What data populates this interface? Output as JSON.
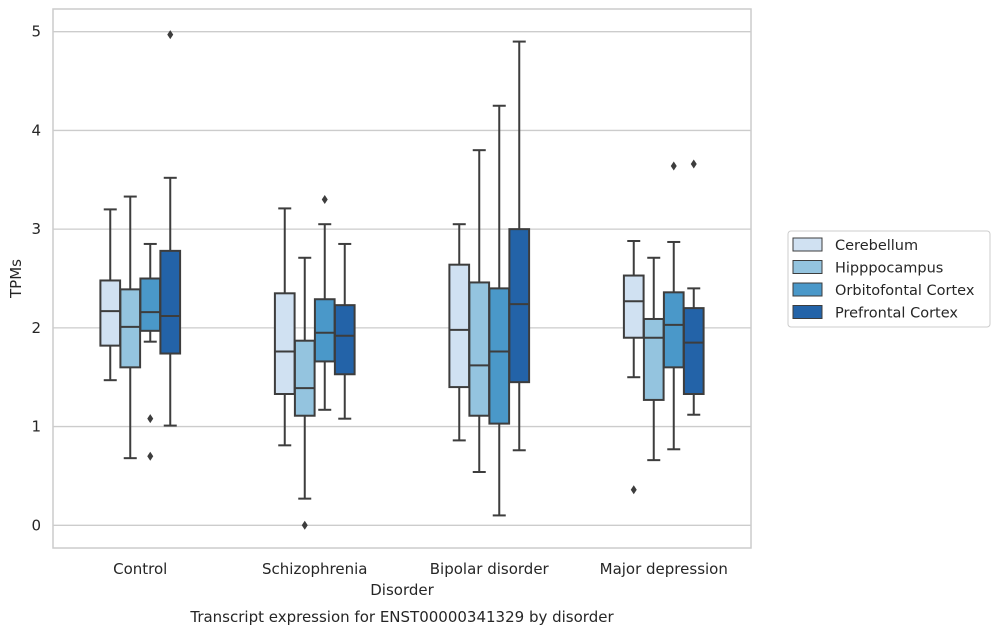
{
  "chart_data": {
    "type": "boxplot",
    "title": "Transcript expression for ENST00000341329 by disorder",
    "xlabel": "Disorder",
    "ylabel": "TPMs",
    "ylim": [
      -0.23,
      5.23
    ],
    "yticks": [
      0,
      1,
      2,
      3,
      4,
      5
    ],
    "grid": "horizontal",
    "legend_position": "right",
    "categories": [
      "Control",
      "Schizophrenia",
      "Bipolar disorder",
      "Major depression"
    ],
    "series": [
      {
        "name": "Cerebellum",
        "color": "#d0e1f2",
        "boxes": [
          {
            "whislo": 1.47,
            "q1": 1.82,
            "med": 2.17,
            "q3": 2.48,
            "whishi": 3.2,
            "fliers": []
          },
          {
            "whislo": 0.81,
            "q1": 1.33,
            "med": 1.76,
            "q3": 2.35,
            "whishi": 3.21,
            "fliers": []
          },
          {
            "whislo": 0.86,
            "q1": 1.4,
            "med": 1.98,
            "q3": 2.64,
            "whishi": 3.05,
            "fliers": []
          },
          {
            "whislo": 1.5,
            "q1": 1.9,
            "med": 2.27,
            "q3": 2.53,
            "whishi": 2.88,
            "fliers": [
              0.36
            ]
          }
        ]
      },
      {
        "name": "Hipppocampus",
        "color": "#94c4df",
        "boxes": [
          {
            "whislo": 0.68,
            "q1": 1.6,
            "med": 2.01,
            "q3": 2.39,
            "whishi": 3.33,
            "fliers": []
          },
          {
            "whislo": 0.27,
            "q1": 1.11,
            "med": 1.39,
            "q3": 1.87,
            "whishi": 2.71,
            "fliers": [
              0.0
            ]
          },
          {
            "whislo": 0.54,
            "q1": 1.11,
            "med": 1.62,
            "q3": 2.46,
            "whishi": 3.8,
            "fliers": []
          },
          {
            "whislo": 0.66,
            "q1": 1.27,
            "med": 1.9,
            "q3": 2.09,
            "whishi": 2.71,
            "fliers": []
          }
        ]
      },
      {
        "name": "Orbitofontal Cortex",
        "color": "#4a98c9",
        "boxes": [
          {
            "whislo": 1.86,
            "q1": 1.97,
            "med": 2.16,
            "q3": 2.5,
            "whishi": 2.85,
            "fliers": [
              1.08,
              0.7
            ]
          },
          {
            "whislo": 1.17,
            "q1": 1.66,
            "med": 1.95,
            "q3": 2.29,
            "whishi": 3.05,
            "fliers": [
              3.3
            ]
          },
          {
            "whislo": 0.1,
            "q1": 1.03,
            "med": 1.76,
            "q3": 2.4,
            "whishi": 4.25,
            "fliers": []
          },
          {
            "whislo": 0.77,
            "q1": 1.6,
            "med": 2.03,
            "q3": 2.36,
            "whishi": 2.87,
            "fliers": [
              3.64
            ]
          }
        ]
      },
      {
        "name": "Prefrontal Cortex",
        "color": "#2363a8",
        "boxes": [
          {
            "whislo": 1.01,
            "q1": 1.74,
            "med": 2.12,
            "q3": 2.78,
            "whishi": 3.52,
            "fliers": [
              4.97
            ]
          },
          {
            "whislo": 1.08,
            "q1": 1.53,
            "med": 1.92,
            "q3": 2.23,
            "whishi": 2.85,
            "fliers": []
          },
          {
            "whislo": 0.76,
            "q1": 1.45,
            "med": 2.24,
            "q3": 3.0,
            "whishi": 4.9,
            "fliers": []
          },
          {
            "whislo": 1.12,
            "q1": 1.33,
            "med": 1.85,
            "q3": 2.2,
            "whishi": 2.4,
            "fliers": [
              3.66
            ]
          }
        ]
      }
    ]
  }
}
